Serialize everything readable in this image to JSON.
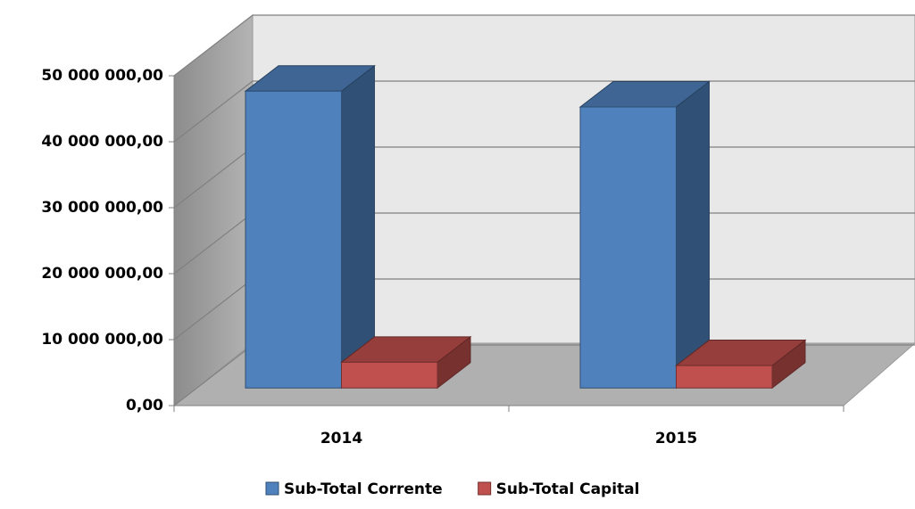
{
  "chart_data": {
    "type": "bar3d",
    "categories": [
      "2014",
      "2015"
    ],
    "series": [
      {
        "name": "Sub-Total Corrente",
        "color": "#4f81bd",
        "values": [
          45000000,
          42600000
        ]
      },
      {
        "name": "Sub-Total Capital",
        "color": "#c0504d",
        "values": [
          3900000,
          3400000
        ]
      }
    ],
    "ylim": [
      0,
      50000000
    ],
    "yticks": [
      {
        "value": 0,
        "label": "0,00"
      },
      {
        "value": 10000000,
        "label": "10 000 000,00"
      },
      {
        "value": 20000000,
        "label": "20 000 000,00"
      },
      {
        "value": 30000000,
        "label": "30 000 000,00"
      },
      {
        "value": 40000000,
        "label": "40 000 000,00"
      },
      {
        "value": 50000000,
        "label": "50 000 000,00"
      }
    ],
    "grid": true,
    "legend": "bottom"
  }
}
